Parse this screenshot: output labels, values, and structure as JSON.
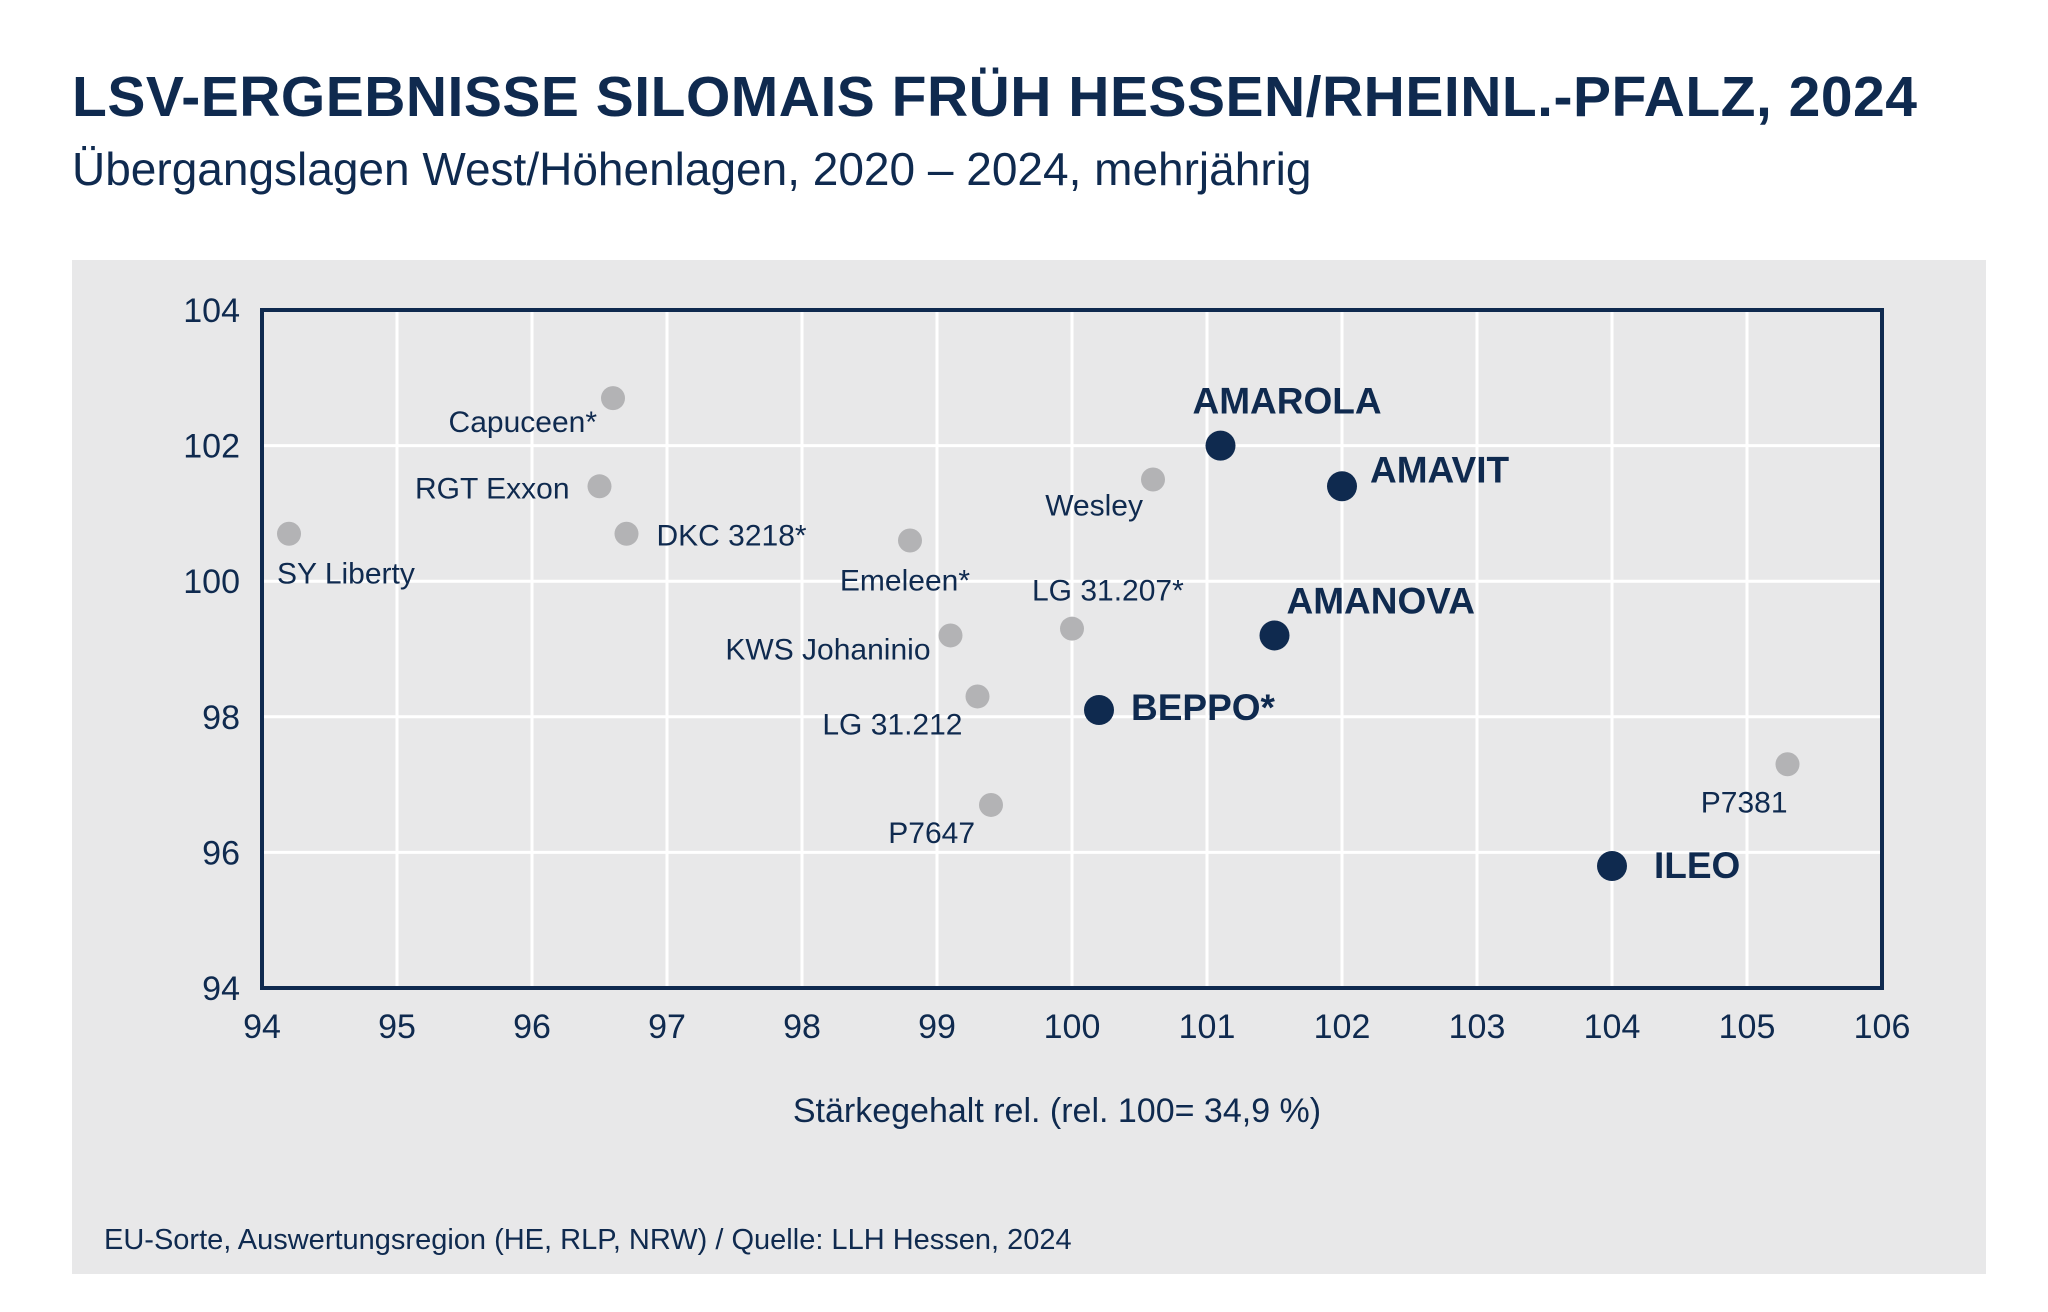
{
  "chart_data": {
    "type": "scatter",
    "title": "LSV-ERGEBNISSE SILOMAIS FRÜH HESSEN/RHEINL.-PFALZ, 2024",
    "subtitle": "Übergangslagen West/Höhenlagen, 2020 – 2024, mehrjährig",
    "xlabel": "Stärkegehalt rel. (rel. 100= 34,9 %)",
    "ylabel": "",
    "xlim": [
      94,
      106
    ],
    "ylim": [
      94,
      104
    ],
    "xticks": [
      "94",
      "95",
      "96",
      "97",
      "98",
      "99",
      "100",
      "101",
      "102",
      "103",
      "104",
      "105",
      "106"
    ],
    "yticks": [
      "94",
      "96",
      "98",
      "100",
      "102",
      "104"
    ],
    "grid": true,
    "footnote": "EU-Sorte, Auswertungsregion (HE, RLP, NRW) / Quelle: LLH Hessen, 2024",
    "colors": {
      "highlight": "#0f2a4f",
      "other": "#b3b3b5",
      "frame": "#0f2a4f",
      "grid": "#ffffff",
      "background": "#e8e8e9"
    },
    "series": [
      {
        "name": "highlighted",
        "points": [
          {
            "label": "AMAROLA",
            "x": 101.1,
            "y": 102.0
          },
          {
            "label": "AMAVIT",
            "x": 102.0,
            "y": 101.4
          },
          {
            "label": "AMANOVA",
            "x": 101.5,
            "y": 99.2
          },
          {
            "label": "BEPPO*",
            "x": 100.2,
            "y": 98.1
          },
          {
            "label": "ILEO",
            "x": 104.0,
            "y": 95.8
          }
        ]
      },
      {
        "name": "other",
        "points": [
          {
            "label": "Capuceen*",
            "x": 96.6,
            "y": 102.7
          },
          {
            "label": "RGT Exxon",
            "x": 96.5,
            "y": 101.4
          },
          {
            "label": "DKC 3218*",
            "x": 96.7,
            "y": 100.7
          },
          {
            "label": "SY Liberty",
            "x": 94.2,
            "y": 100.7
          },
          {
            "label": "Emeleen*",
            "x": 98.8,
            "y": 100.6
          },
          {
            "label": "Wesley",
            "x": 100.6,
            "y": 101.5
          },
          {
            "label": "LG 31.207*",
            "x": 100.0,
            "y": 99.3
          },
          {
            "label": "KWS Johaninio",
            "x": 99.1,
            "y": 99.2
          },
          {
            "label": "LG 31.212",
            "x": 99.3,
            "y": 98.3
          },
          {
            "label": "P7647",
            "x": 99.4,
            "y": 96.7
          },
          {
            "label": "P7381",
            "x": 105.3,
            "y": 97.3
          }
        ]
      }
    ]
  }
}
